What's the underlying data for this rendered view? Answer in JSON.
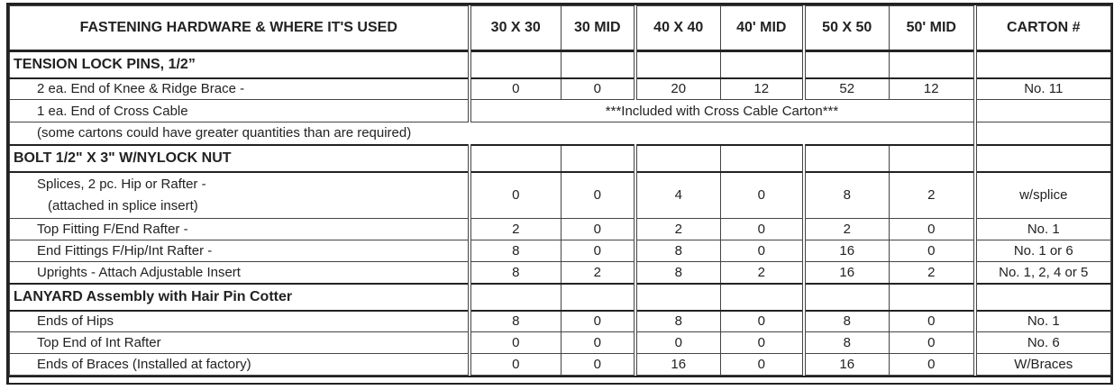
{
  "headers": [
    "FASTENING HARDWARE & WHERE IT'S USED",
    "30 X 30",
    "30 MID",
    "40 X 40",
    "40' MID",
    "50 X 50",
    "50' MID",
    "CARTON #"
  ],
  "rows": [
    {
      "type": "section",
      "label": "TENSION LOCK PINS, 1/2”"
    },
    {
      "type": "data",
      "label": "2 ea. End of Knee & Ridge Brace -",
      "values": [
        "0",
        "0",
        "20",
        "12",
        "52",
        "12"
      ],
      "carton": "No. 11"
    },
    {
      "type": "span",
      "label": "1 ea. End of Cross Cable",
      "span_text": "***Included with Cross Cable Carton***"
    },
    {
      "type": "note",
      "label": "(some cartons could have greater quantities than are required)"
    },
    {
      "type": "section",
      "label": "BOLT 1/2\" X 3\" W/NYLOCK NUT"
    },
    {
      "type": "data",
      "label": "Splices, 2 pc. Hip or Rafter -",
      "sublabel": "(attached in splice insert)",
      "values": [
        "0",
        "0",
        "4",
        "0",
        "8",
        "2"
      ],
      "carton": "w/splice"
    },
    {
      "type": "data",
      "label": "Top Fitting F/End Rafter -",
      "values": [
        "2",
        "0",
        "2",
        "0",
        "2",
        "0"
      ],
      "carton": "No. 1"
    },
    {
      "type": "data",
      "label": "End Fittings F/Hip/Int Rafter -",
      "values": [
        "8",
        "0",
        "8",
        "0",
        "16",
        "0"
      ],
      "carton": "No. 1 or 6"
    },
    {
      "type": "data",
      "label": "Uprights - Attach Adjustable Insert",
      "values": [
        "8",
        "2",
        "8",
        "2",
        "16",
        "2"
      ],
      "carton": "No. 1, 2, 4 or 5"
    },
    {
      "type": "section",
      "label": "LANYARD  Assembly with Hair Pin Cotter"
    },
    {
      "type": "data",
      "label": "Ends of Hips",
      "values": [
        "8",
        "0",
        "8",
        "0",
        "8",
        "0"
      ],
      "carton": "No. 1"
    },
    {
      "type": "data",
      "label": "Top End of Int Rafter",
      "values": [
        "0",
        "0",
        "0",
        "0",
        "8",
        "0"
      ],
      "carton": "No. 6"
    },
    {
      "type": "data",
      "label": "Ends of Braces (Installed at factory)",
      "values": [
        "0",
        "0",
        "16",
        "0",
        "16",
        "0"
      ],
      "carton": "W/Braces"
    }
  ]
}
